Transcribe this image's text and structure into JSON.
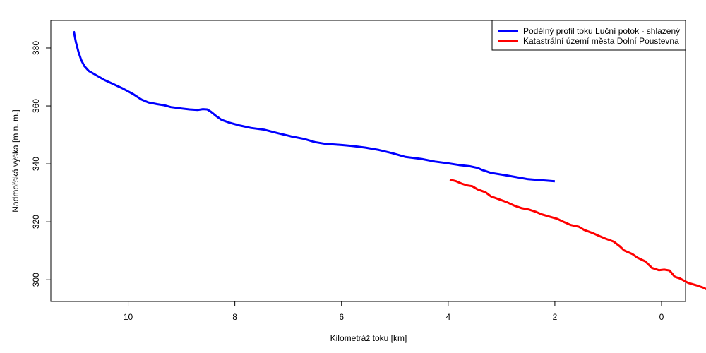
{
  "chart_data": {
    "type": "line",
    "xlabel": "Kilometráž toku [km]",
    "ylabel": "Nadmořská výška [m n. m.]",
    "xlim": [
      11.45,
      -0.45
    ],
    "ylim": [
      292.5,
      389.5
    ],
    "x_ticks": [
      10,
      8,
      6,
      4,
      2,
      0
    ],
    "y_ticks": [
      300,
      320,
      340,
      360,
      380
    ],
    "grid": false,
    "legend_position": "top-right",
    "series": [
      {
        "name": "Podélný profil toku Luční potok - shlazený",
        "color": "#0000ff",
        "points": [
          [
            11.02,
            385.8
          ],
          [
            10.98,
            382.0
          ],
          [
            10.93,
            378.5
          ],
          [
            10.88,
            375.8
          ],
          [
            10.82,
            373.7
          ],
          [
            10.74,
            372.1
          ],
          [
            10.6,
            370.6
          ],
          [
            10.45,
            369.0
          ],
          [
            10.3,
            367.7
          ],
          [
            10.1,
            366.0
          ],
          [
            9.9,
            364.0
          ],
          [
            9.75,
            362.2
          ],
          [
            9.62,
            361.2
          ],
          [
            9.45,
            360.6
          ],
          [
            9.32,
            360.2
          ],
          [
            9.2,
            359.6
          ],
          [
            9.0,
            359.1
          ],
          [
            8.85,
            358.8
          ],
          [
            8.7,
            358.6
          ],
          [
            8.6,
            358.9
          ],
          [
            8.52,
            358.8
          ],
          [
            8.45,
            358.0
          ],
          [
            8.35,
            356.5
          ],
          [
            8.25,
            355.2
          ],
          [
            8.1,
            354.2
          ],
          [
            7.9,
            353.2
          ],
          [
            7.7,
            352.4
          ],
          [
            7.45,
            351.8
          ],
          [
            7.2,
            350.6
          ],
          [
            6.95,
            349.5
          ],
          [
            6.7,
            348.6
          ],
          [
            6.5,
            347.5
          ],
          [
            6.3,
            346.9
          ],
          [
            6.0,
            346.5
          ],
          [
            5.8,
            346.2
          ],
          [
            5.55,
            345.6
          ],
          [
            5.3,
            344.8
          ],
          [
            5.05,
            343.7
          ],
          [
            4.8,
            342.4
          ],
          [
            4.5,
            341.7
          ],
          [
            4.25,
            340.8
          ],
          [
            4.0,
            340.2
          ],
          [
            3.8,
            339.6
          ],
          [
            3.6,
            339.2
          ],
          [
            3.45,
            338.6
          ],
          [
            3.35,
            337.8
          ],
          [
            3.2,
            336.9
          ],
          [
            2.9,
            336.0
          ],
          [
            2.5,
            334.7
          ],
          [
            2.0,
            334.0
          ]
        ]
      },
      {
        "name": "Katastrální území města Dolní Poustevna",
        "color": "#ff0000",
        "points": [
          [
            3.97,
            334.6
          ],
          [
            3.85,
            334.0
          ],
          [
            3.75,
            333.2
          ],
          [
            3.65,
            332.6
          ],
          [
            3.55,
            332.3
          ],
          [
            3.45,
            331.2
          ],
          [
            3.3,
            330.2
          ],
          [
            3.2,
            328.8
          ],
          [
            3.05,
            327.8
          ],
          [
            2.9,
            326.8
          ],
          [
            2.75,
            325.5
          ],
          [
            2.62,
            324.7
          ],
          [
            2.48,
            324.2
          ],
          [
            2.35,
            323.4
          ],
          [
            2.25,
            322.6
          ],
          [
            2.1,
            321.8
          ],
          [
            1.95,
            321.0
          ],
          [
            1.85,
            320.1
          ],
          [
            1.7,
            318.9
          ],
          [
            1.55,
            318.3
          ],
          [
            1.45,
            317.2
          ],
          [
            1.3,
            316.2
          ],
          [
            1.18,
            315.2
          ],
          [
            1.05,
            314.2
          ],
          [
            0.9,
            313.2
          ],
          [
            0.78,
            311.5
          ],
          [
            0.7,
            310.1
          ],
          [
            0.55,
            308.9
          ],
          [
            0.45,
            307.6
          ],
          [
            0.3,
            306.3
          ],
          [
            0.18,
            304.1
          ],
          [
            0.05,
            303.3
          ],
          [
            -0.05,
            303.5
          ],
          [
            -0.15,
            303.2
          ],
          [
            -0.25,
            301.0
          ],
          [
            -0.35,
            300.4
          ],
          [
            -0.5,
            298.9
          ],
          [
            -0.65,
            298.1
          ],
          [
            -0.78,
            297.3
          ],
          [
            -0.9,
            296.2
          ],
          [
            -1.0,
            295.9
          ]
        ]
      }
    ]
  }
}
